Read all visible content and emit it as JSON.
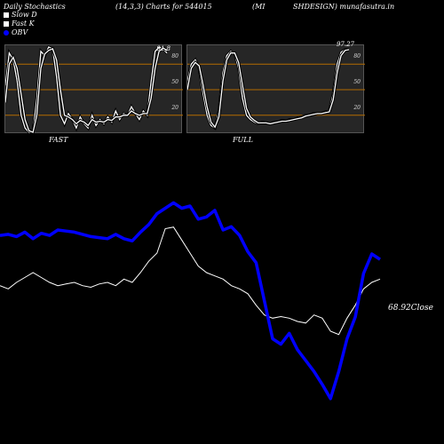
{
  "header": {
    "left": "Daily Stochastics",
    "params": "(14,3,3) Charts for 544015",
    "name_a": "(MI",
    "name_b": "SHDESIGN) munafasutra.in"
  },
  "legend": [
    {
      "label": "Slow  D",
      "color": "#ffffff"
    },
    {
      "label": "Fast K",
      "color": "#ffffff"
    },
    {
      "label": "OBV",
      "color": "#0000ff"
    }
  ],
  "colors": {
    "obv": "#0000ff",
    "close": "#ffffff",
    "level": "#b36b00",
    "panel_bg": "#262626"
  },
  "chart_data": [
    {
      "type": "line",
      "title": "FAST",
      "ylim": [
        0,
        100
      ],
      "levels": [
        20,
        50,
        80
      ],
      "ytick_labels": [
        "20",
        "50",
        "80"
      ],
      "last_value_label": "91.8",
      "series": [
        {
          "values": [
            55,
            93,
            85,
            60,
            20,
            5,
            0,
            0,
            40,
            95,
            90,
            100,
            98,
            65,
            20,
            10,
            22,
            15,
            5,
            18,
            10,
            5,
            20,
            8,
            15,
            10,
            18,
            12,
            25,
            15,
            22,
            20,
            30,
            22,
            15,
            25,
            20,
            60,
            95,
            100,
            98,
            93
          ]
        },
        {
          "values": [
            35,
            80,
            88,
            75,
            45,
            15,
            2,
            0,
            20,
            75,
            92,
            96,
            98,
            85,
            50,
            20,
            18,
            15,
            10,
            14,
            12,
            8,
            15,
            12,
            13,
            12,
            15,
            14,
            18,
            18,
            20,
            20,
            25,
            22,
            20,
            22,
            22,
            40,
            75,
            95,
            99,
            96
          ]
        }
      ]
    },
    {
      "type": "line",
      "title": "FULL",
      "ylim": [
        0,
        100
      ],
      "levels": [
        20,
        50,
        80
      ],
      "ytick_labels": [
        "20",
        "50",
        "80"
      ],
      "last_value_label": "97.27",
      "series": [
        {
          "values": [
            60,
            80,
            85,
            75,
            45,
            20,
            8,
            5,
            25,
            70,
            90,
            95,
            92,
            75,
            40,
            20,
            15,
            12,
            10,
            12,
            11,
            10,
            12,
            12,
            14,
            13,
            15,
            15,
            17,
            18,
            20,
            20,
            22,
            22,
            22,
            24,
            25,
            45,
            80,
            94,
            97,
            97
          ]
        },
        {
          "values": [
            50,
            75,
            82,
            78,
            55,
            30,
            12,
            6,
            18,
            60,
            85,
            93,
            93,
            82,
            55,
            28,
            18,
            14,
            11,
            11,
            11,
            10,
            11,
            12,
            13,
            13,
            14,
            15,
            16,
            17,
            19,
            20,
            21,
            22,
            22,
            23,
            24,
            38,
            70,
            90,
            96,
            97
          ]
        }
      ]
    },
    {
      "type": "line",
      "title": "",
      "last_value_label": "68.92Close",
      "series": [
        {
          "name": "OBV",
          "values": [
            55,
            56,
            54,
            58,
            52,
            57,
            55,
            60,
            59,
            58,
            56,
            54,
            53,
            52,
            56,
            52,
            50,
            58,
            65,
            75,
            80,
            85,
            80,
            82,
            70,
            72,
            78,
            60,
            63,
            55,
            40,
            30,
            -5,
            -40,
            -45,
            -35,
            -50,
            -60,
            -70,
            -82,
            -95,
            -70,
            -40,
            -20,
            20,
            38,
            33
          ]
        },
        {
          "name": "Close",
          "values": [
            10,
            8,
            12,
            15,
            18,
            15,
            12,
            10,
            11,
            12,
            10,
            9,
            11,
            12,
            10,
            14,
            12,
            18,
            25,
            30,
            45,
            46,
            38,
            30,
            22,
            18,
            16,
            14,
            10,
            8,
            5,
            -2,
            -8,
            -10,
            -9,
            -10,
            -12,
            -13,
            -8,
            -10,
            -18,
            -20,
            -10,
            -2,
            8,
            12,
            14
          ]
        }
      ]
    }
  ]
}
